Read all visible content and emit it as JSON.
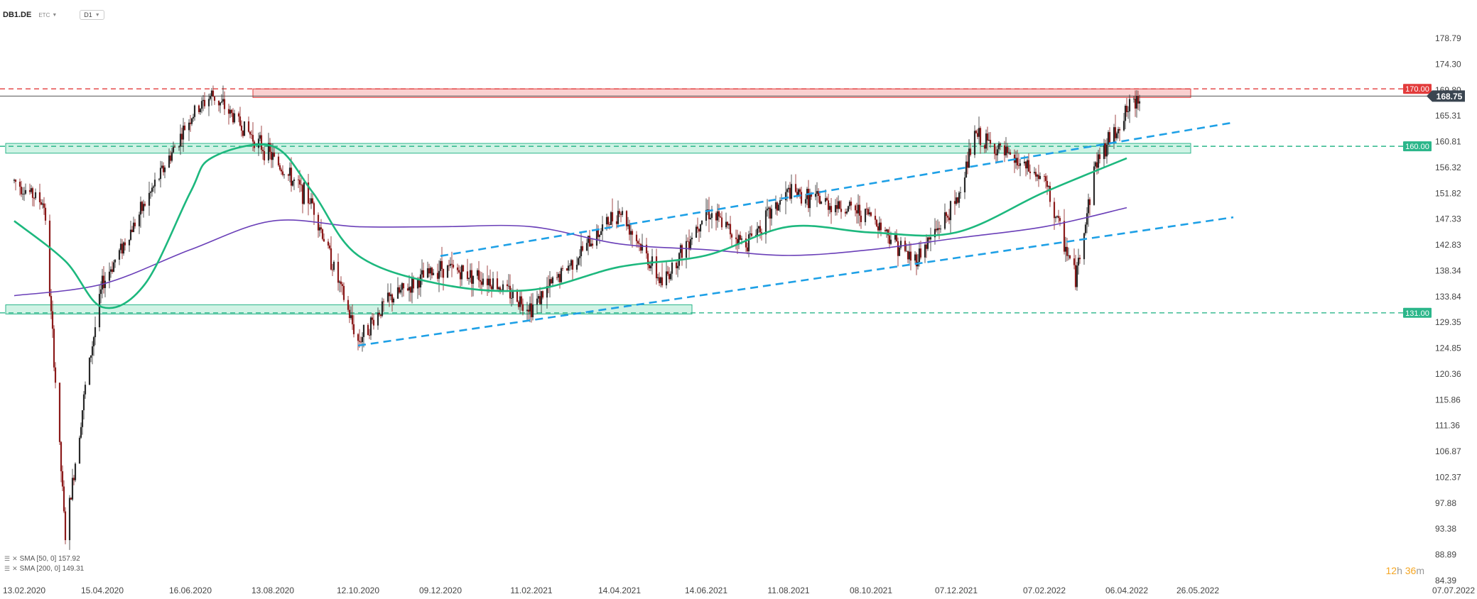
{
  "header": {
    "symbol": "DB1.DE",
    "sub": "ETC",
    "timeframe": "D1"
  },
  "legend": [
    {
      "label": "SMA [50, 0] 157.92"
    },
    {
      "label": "SMA [200, 0] 149.31"
    }
  ],
  "timer": {
    "hours": "12",
    "h_unit": "h",
    "minutes": "36",
    "m_unit": "m"
  },
  "colors": {
    "up": "#2a2a2a",
    "down": "#8b1a1a",
    "sma50": "#1db87e",
    "sma200": "#6a3fb8",
    "trend": "#1ea0e6",
    "support": "#2bb68a",
    "resistance": "#e23b3b",
    "price_tag": "#3a4550"
  },
  "chart_data": {
    "type": "candlestick",
    "ylim": [
      84.39,
      183.0
    ],
    "y_ticks": [
      "178.79",
      "174.30",
      "169.80",
      "165.31",
      "160.81",
      "156.32",
      "151.82",
      "147.33",
      "142.83",
      "138.34",
      "133.84",
      "129.35",
      "124.85",
      "120.36",
      "115.86",
      "111.36",
      "106.87",
      "102.37",
      "97.88",
      "93.38",
      "88.89",
      "84.39"
    ],
    "x_ticks": [
      "13.02.2020",
      "15.04.2020",
      "16.06.2020",
      "13.08.2020",
      "12.10.2020",
      "09.12.2020",
      "11.02.2021",
      "14.04.2021",
      "14.06.2021",
      "11.08.2021",
      "08.10.2021",
      "07.12.2021",
      "07.02.2022",
      "06.04.2022",
      "26.05.2022",
      "07.07.2022"
    ],
    "last_price": "168.75",
    "levels": [
      {
        "label": "170.00",
        "value": 170.0,
        "kind": "resistance"
      },
      {
        "label": "160.00",
        "value": 160.0,
        "kind": "support"
      },
      {
        "label": "131.00",
        "value": 131.0,
        "kind": "support"
      }
    ],
    "zones": [
      {
        "from_date": "16.06.2020",
        "to_date": "26.05.2022",
        "low": 168.5,
        "high": 170.0,
        "kind": "resistance"
      },
      {
        "from_date": "13.02.2020",
        "to_date": "26.05.2022",
        "low": 158.8,
        "high": 160.5,
        "kind": "support"
      },
      {
        "from_date": "13.02.2020",
        "to_date": "14.06.2021",
        "low": 130.8,
        "high": 132.4,
        "kind": "support"
      }
    ],
    "trendlines": [
      {
        "from": [
          "12.10.2020",
          125.3
        ],
        "to": [
          "26.05.2022",
          147.7
        ]
      },
      {
        "from": [
          "09.12.2020",
          140.9
        ],
        "to": [
          "26.05.2022",
          164.2
        ]
      }
    ],
    "price_path": [
      [
        "13.02.2020",
        154
      ],
      [
        "05.03.2020",
        150
      ],
      [
        "20.03.2020",
        92
      ],
      [
        "03.04.2020",
        118
      ],
      [
        "15.04.2020",
        136
      ],
      [
        "15.05.2020",
        150
      ],
      [
        "16.06.2020",
        165
      ],
      [
        "01.07.2020",
        169
      ],
      [
        "13.07.2020",
        166
      ],
      [
        "13.08.2020",
        158
      ],
      [
        "10.09.2020",
        150
      ],
      [
        "12.10.2020",
        126
      ],
      [
        "01.11.2020",
        133
      ],
      [
        "09.12.2020",
        139
      ],
      [
        "11.01.2021",
        137
      ],
      [
        "11.02.2021",
        132
      ],
      [
        "14.04.2021",
        149
      ],
      [
        "14.05.2021",
        136
      ],
      [
        "14.06.2021",
        149
      ],
      [
        "11.07.2021",
        143
      ],
      [
        "11.08.2021",
        152
      ],
      [
        "08.10.2021",
        148
      ],
      [
        "07.11.2021",
        140
      ],
      [
        "07.12.2021",
        150
      ],
      [
        "20.12.2021",
        162
      ],
      [
        "07.02.2022",
        154
      ],
      [
        "01.03.2022",
        137
      ],
      [
        "15.03.2022",
        157
      ],
      [
        "06.04.2022",
        166
      ],
      [
        "15.04.2022",
        168.75
      ]
    ],
    "sma50": [
      [
        "13.02.2020",
        147
      ],
      [
        "20.03.2020",
        140
      ],
      [
        "15.04.2020",
        132
      ],
      [
        "15.05.2020",
        136
      ],
      [
        "16.06.2020",
        152
      ],
      [
        "01.07.2020",
        158
      ],
      [
        "13.08.2020",
        160
      ],
      [
        "10.09.2020",
        152
      ],
      [
        "12.10.2020",
        141
      ],
      [
        "09.12.2020",
        136
      ],
      [
        "11.02.2021",
        135
      ],
      [
        "14.04.2021",
        139
      ],
      [
        "14.06.2021",
        141
      ],
      [
        "11.08.2021",
        146
      ],
      [
        "08.10.2021",
        145
      ],
      [
        "07.12.2021",
        145
      ],
      [
        "07.02.2022",
        152
      ],
      [
        "06.04.2022",
        157.92
      ]
    ],
    "sma200": [
      [
        "13.02.2020",
        134
      ],
      [
        "15.04.2020",
        136
      ],
      [
        "16.06.2020",
        142
      ],
      [
        "13.08.2020",
        147
      ],
      [
        "12.10.2020",
        146
      ],
      [
        "09.12.2020",
        146
      ],
      [
        "11.02.2021",
        146
      ],
      [
        "14.04.2021",
        143
      ],
      [
        "14.06.2021",
        142
      ],
      [
        "11.08.2021",
        141
      ],
      [
        "08.10.2021",
        142
      ],
      [
        "07.12.2021",
        144
      ],
      [
        "07.02.2022",
        146
      ],
      [
        "06.04.2022",
        149.31
      ]
    ]
  }
}
